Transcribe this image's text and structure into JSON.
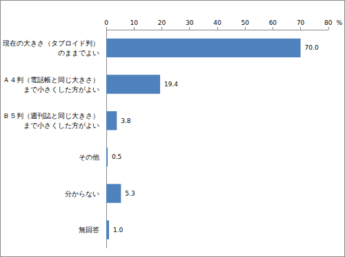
{
  "chart_data": {
    "type": "bar",
    "orientation": "horizontal",
    "categories": [
      "現在の大きさ（タブロイド判）\nのままでよい",
      "Ａ４判（電話帳と同じ大きさ）\nまで小さくした方がよい",
      "Ｂ５判（週刊誌と同じ大きさ）\nまで小さくした方がよい",
      "その他",
      "分からない",
      "無回答"
    ],
    "values": [
      70.0,
      19.4,
      3.8,
      0.5,
      5.3,
      1.0
    ],
    "value_labels": [
      "70.0",
      "19.4",
      "3.8",
      "0.5",
      "5.3",
      "1.0"
    ],
    "data_labels": true,
    "color": "#4f81bd",
    "x_label": "%",
    "xlim": [
      0,
      80
    ],
    "xticks": [
      0,
      10,
      20,
      30,
      40,
      50,
      60,
      70,
      80
    ],
    "grid": false
  }
}
